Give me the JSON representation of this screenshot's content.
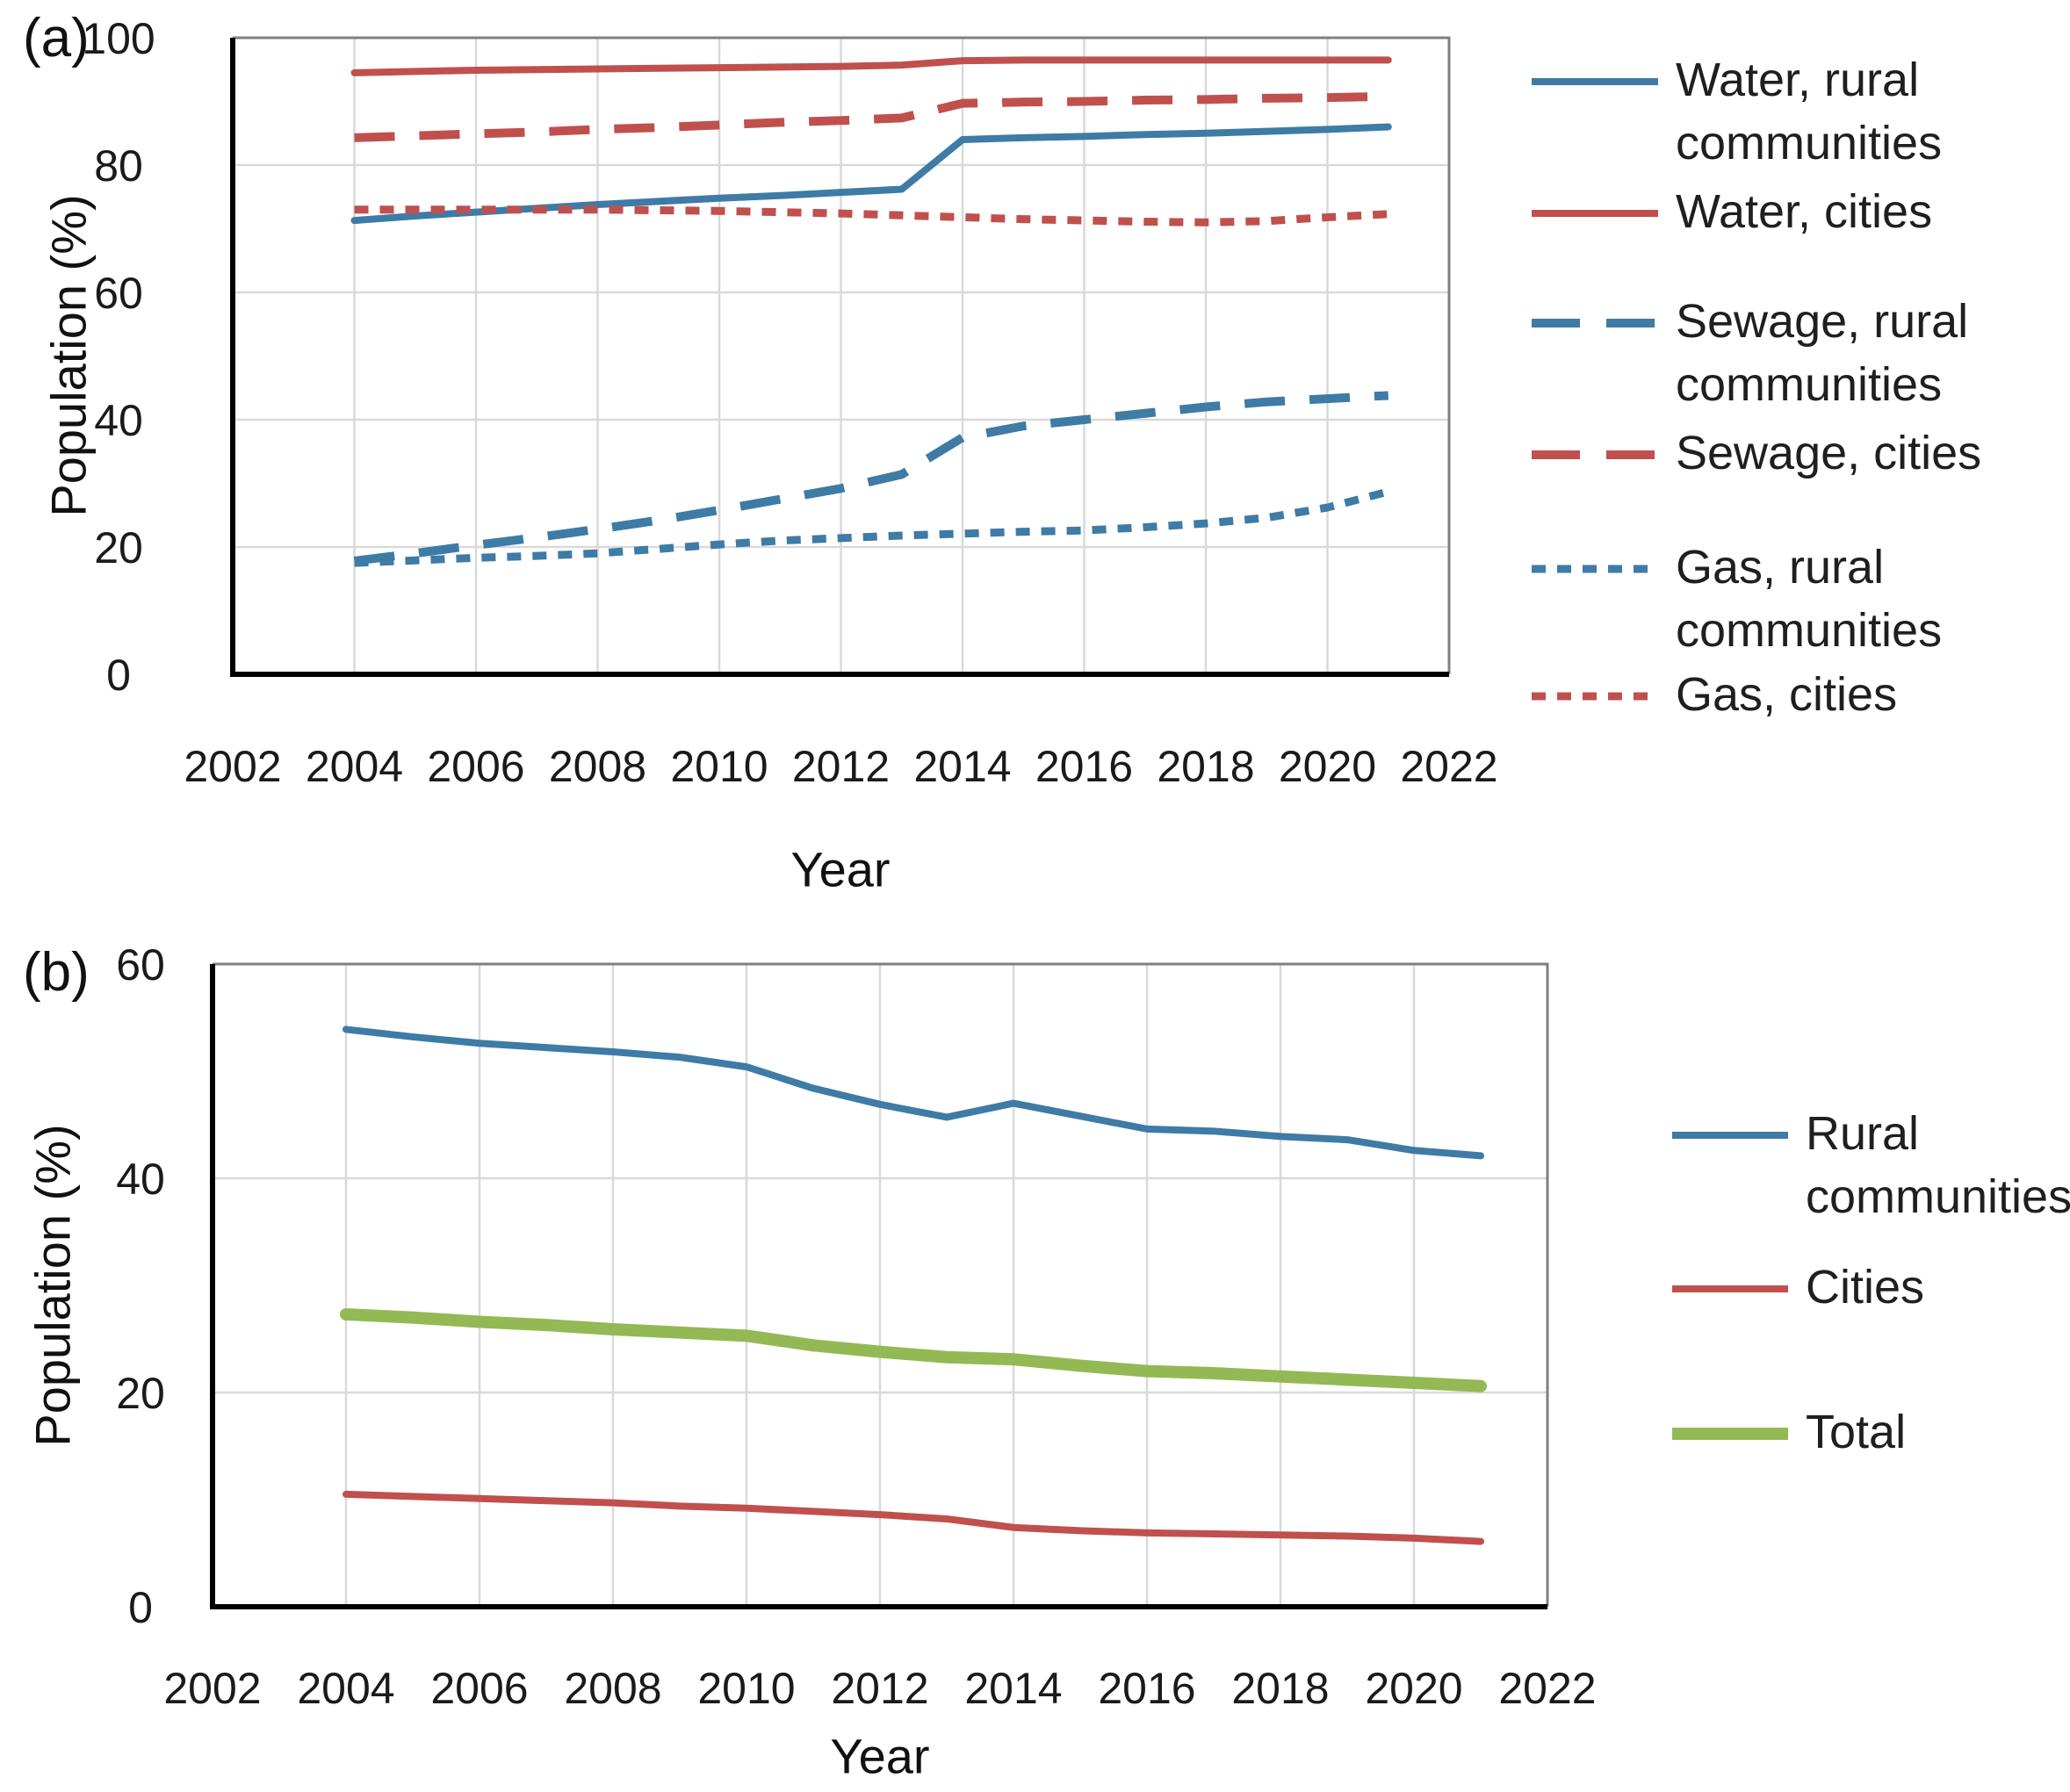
{
  "panels": [
    {
      "tag": "(a)",
      "ylabel": "Population (%)",
      "xlabel": "Year",
      "legend": [
        {
          "label1": "Water, rural",
          "label2": "communities",
          "color": "#3e7ba6",
          "style": "solid"
        },
        {
          "label1": "Water, cities",
          "label2": "",
          "color": "#c0504d",
          "style": "solid"
        },
        {
          "label1": "Sewage, rural",
          "label2": "communities",
          "color": "#3e7ba6",
          "style": "long-dash"
        },
        {
          "label1": "Sewage, cities",
          "label2": "",
          "color": "#c0504d",
          "style": "long-dash"
        },
        {
          "label1": "Gas, rural",
          "label2": "communities",
          "color": "#3e7ba6",
          "style": "short-dash"
        },
        {
          "label1": "Gas, cities",
          "label2": "",
          "color": "#c0504d",
          "style": "short-dash"
        }
      ]
    },
    {
      "tag": "(b)",
      "ylabel": "Population (%)",
      "xlabel": "Year",
      "legend": [
        {
          "label1": "Rural",
          "label2": "communities",
          "color": "#3e7ba6",
          "style": "solid"
        },
        {
          "label1": "Cities",
          "label2": "",
          "color": "#c0504d",
          "style": "solid"
        },
        {
          "label1": "Total",
          "label2": "",
          "color": "#93b954",
          "style": "solid-thick"
        }
      ]
    }
  ],
  "colors": {
    "blue": "#3e7ba6",
    "red": "#c0504d",
    "green": "#93b954",
    "gridline": "#d9d9d9",
    "axis": "#000000",
    "border": "#7f7f7f",
    "text": "#1a1a1a"
  },
  "chart_data": [
    {
      "type": "line",
      "panel": "(a)",
      "xlabel": "Year",
      "ylabel": "Population (%)",
      "xlim": [
        2002,
        2022
      ],
      "ylim": [
        0,
        100
      ],
      "xticks": [
        2002,
        2004,
        2006,
        2008,
        2010,
        2012,
        2014,
        2016,
        2018,
        2020,
        2022
      ],
      "yticks": [
        0,
        20,
        40,
        60,
        80,
        100
      ],
      "grid": true,
      "legend_position": "right",
      "x": [
        2004,
        2005,
        2006,
        2007,
        2008,
        2009,
        2010,
        2011,
        2012,
        2013,
        2014,
        2015,
        2016,
        2017,
        2018,
        2019,
        2020,
        2021
      ],
      "series": [
        {
          "name": "Water, rural communities",
          "color": "#3e7ba6",
          "dash": "solid",
          "emphasis": false,
          "values": [
            71.3,
            72.0,
            72.6,
            73.2,
            73.8,
            74.3,
            74.8,
            75.2,
            75.7,
            76.2,
            84.0,
            84.3,
            84.5,
            84.8,
            85.0,
            85.3,
            85.6,
            86.0
          ]
        },
        {
          "name": "Water, cities",
          "color": "#c0504d",
          "dash": "solid",
          "emphasis": false,
          "values": [
            94.5,
            94.7,
            94.9,
            95.0,
            95.1,
            95.2,
            95.3,
            95.4,
            95.5,
            95.7,
            96.4,
            96.5,
            96.5,
            96.5,
            96.5,
            96.5,
            96.5,
            96.5
          ]
        },
        {
          "name": "Sewage, rural communities",
          "color": "#3e7ba6",
          "dash": "long",
          "emphasis": false,
          "values": [
            17.8,
            19.0,
            20.3,
            21.5,
            22.8,
            24.2,
            25.8,
            27.5,
            29.2,
            31.4,
            37.2,
            39.0,
            40.0,
            41.0,
            42.0,
            42.8,
            43.3,
            43.8
          ]
        },
        {
          "name": "Sewage, cities",
          "color": "#c0504d",
          "dash": "long",
          "emphasis": false,
          "values": [
            84.3,
            84.6,
            84.9,
            85.2,
            85.6,
            85.9,
            86.3,
            86.7,
            87.0,
            87.4,
            89.7,
            89.9,
            90.0,
            90.2,
            90.3,
            90.5,
            90.6,
            90.8
          ]
        },
        {
          "name": "Gas, rural communities",
          "color": "#3e7ba6",
          "dash": "short",
          "emphasis": false,
          "values": [
            17.5,
            17.9,
            18.3,
            18.6,
            19.0,
            19.7,
            20.4,
            21.0,
            21.4,
            21.8,
            22.1,
            22.4,
            22.6,
            23.1,
            23.7,
            24.6,
            26.2,
            28.7
          ]
        },
        {
          "name": "Gas, cities",
          "color": "#c0504d",
          "dash": "short",
          "emphasis": false,
          "values": [
            73.0,
            73.0,
            73.0,
            73.0,
            73.0,
            72.9,
            72.8,
            72.6,
            72.4,
            72.1,
            71.8,
            71.5,
            71.3,
            71.1,
            71.0,
            71.2,
            71.8,
            72.3
          ]
        }
      ]
    },
    {
      "type": "line",
      "panel": "(b)",
      "xlabel": "Year",
      "ylabel": "Population (%)",
      "xlim": [
        2002,
        2022
      ],
      "ylim": [
        0,
        60
      ],
      "xticks": [
        2002,
        2004,
        2006,
        2008,
        2010,
        2012,
        2014,
        2016,
        2018,
        2020,
        2022
      ],
      "yticks": [
        0,
        20,
        40,
        60
      ],
      "grid": true,
      "legend_position": "right",
      "x": [
        2004,
        2005,
        2006,
        2007,
        2008,
        2009,
        2010,
        2011,
        2012,
        2013,
        2014,
        2015,
        2016,
        2017,
        2018,
        2019,
        2020,
        2021
      ],
      "series": [
        {
          "name": "Rural communities",
          "color": "#3e7ba6",
          "dash": "solid",
          "emphasis": false,
          "values": [
            53.9,
            53.2,
            52.6,
            52.2,
            51.8,
            51.3,
            50.4,
            48.4,
            46.9,
            45.7,
            47.0,
            45.8,
            44.6,
            44.4,
            43.9,
            43.6,
            42.6,
            42.1
          ]
        },
        {
          "name": "Cities",
          "color": "#c0504d",
          "dash": "solid",
          "emphasis": false,
          "values": [
            10.5,
            10.3,
            10.1,
            9.9,
            9.7,
            9.4,
            9.2,
            8.9,
            8.6,
            8.2,
            7.4,
            7.1,
            6.9,
            6.8,
            6.7,
            6.6,
            6.4,
            6.1
          ]
        },
        {
          "name": "Total",
          "color": "#93b954",
          "dash": "solid",
          "emphasis": true,
          "values": [
            27.3,
            27.0,
            26.6,
            26.3,
            25.9,
            25.6,
            25.3,
            24.4,
            23.8,
            23.3,
            23.1,
            22.5,
            22.0,
            21.8,
            21.5,
            21.2,
            20.9,
            20.6
          ]
        }
      ]
    }
  ]
}
